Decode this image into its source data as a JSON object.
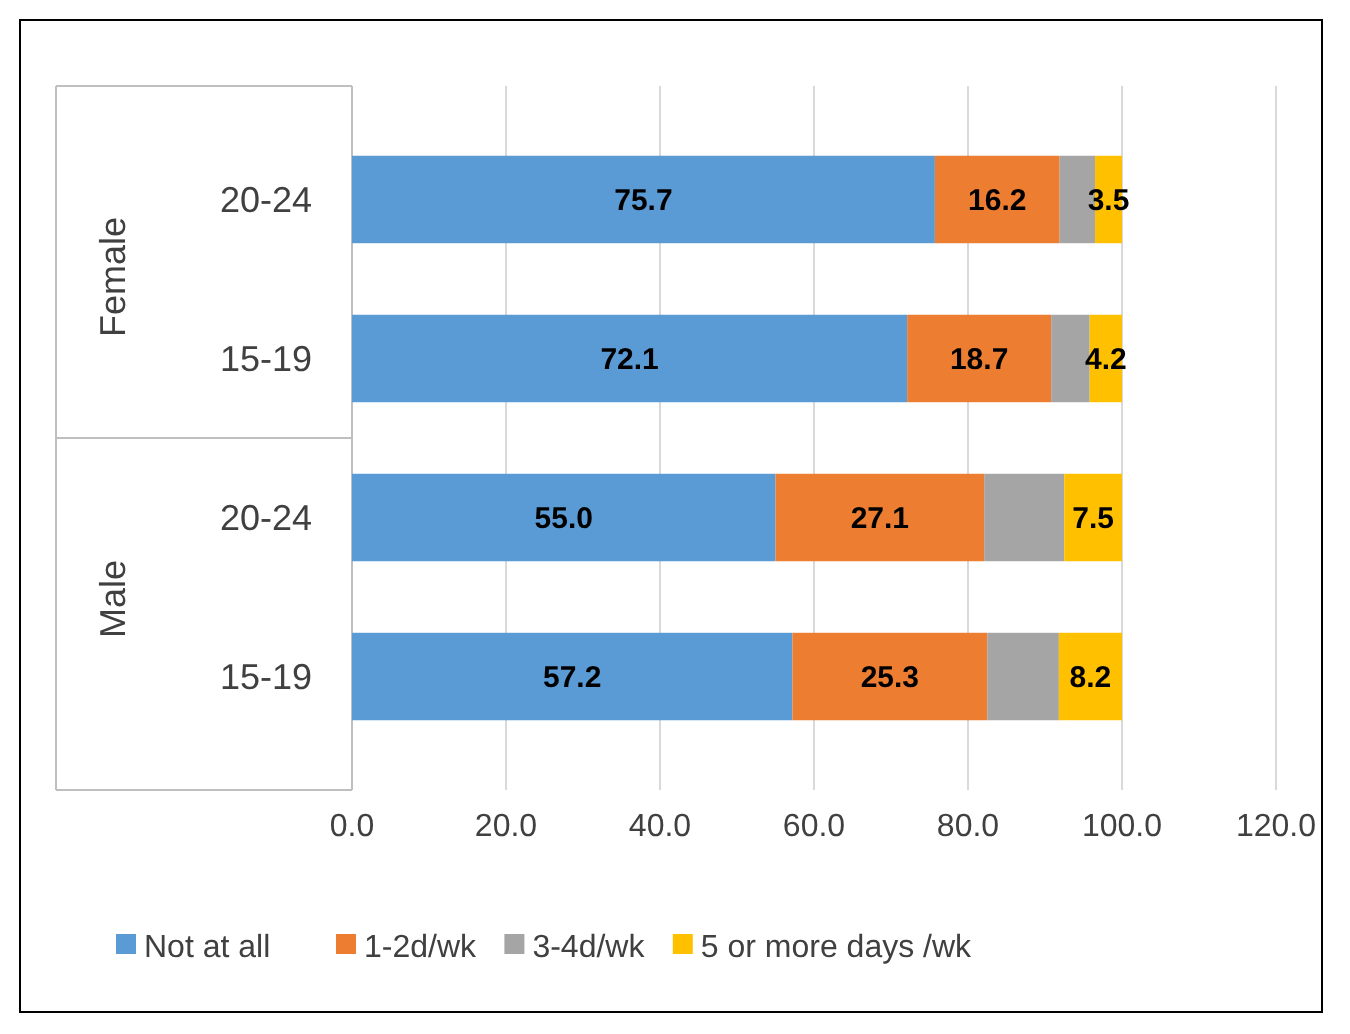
{
  "chart_data": {
    "type": "bar",
    "orientation": "horizontal",
    "stacked": true,
    "categories": [
      "20-24",
      "15-19",
      "20-24",
      "15-19"
    ],
    "annotations": [
      "Female",
      "Male"
    ],
    "series": [
      {
        "name": "Not at all",
        "color": "#5b9bd5",
        "values": [
          75.7,
          72.1,
          55.0,
          57.2
        ],
        "value_labels": [
          "75.7",
          "72.1",
          "55.0",
          "57.2"
        ]
      },
      {
        "name": "1-2d/wk",
        "color": "#ed7d31",
        "values": [
          16.2,
          18.7,
          27.1,
          25.3
        ],
        "value_labels": [
          "16.2",
          "18.7",
          "27.1",
          "25.3"
        ]
      },
      {
        "name": "3-4d/wk",
        "color": "#a5a5a5",
        "values": [
          4.6,
          5.0,
          10.4,
          9.3
        ],
        "value_labels": [
          null,
          null,
          null,
          null
        ]
      },
      {
        "name": "5 or more days /wk",
        "color": "#ffc000",
        "values": [
          3.5,
          4.2,
          7.5,
          8.2
        ],
        "value_labels": [
          "3.5",
          "4.2",
          "7.5",
          "8.2"
        ]
      }
    ],
    "xlim": [
      0,
      120
    ],
    "xticks": [
      {
        "value": 0,
        "label": "0.0"
      },
      {
        "value": 20,
        "label": "20.0"
      },
      {
        "value": 40,
        "label": "40.0"
      },
      {
        "value": 60,
        "label": "60.0"
      },
      {
        "value": 80,
        "label": "80.0"
      },
      {
        "value": 100,
        "label": "100.0"
      },
      {
        "value": 120,
        "label": "120.0"
      }
    ],
    "grid": "x",
    "legend": "bottom"
  }
}
